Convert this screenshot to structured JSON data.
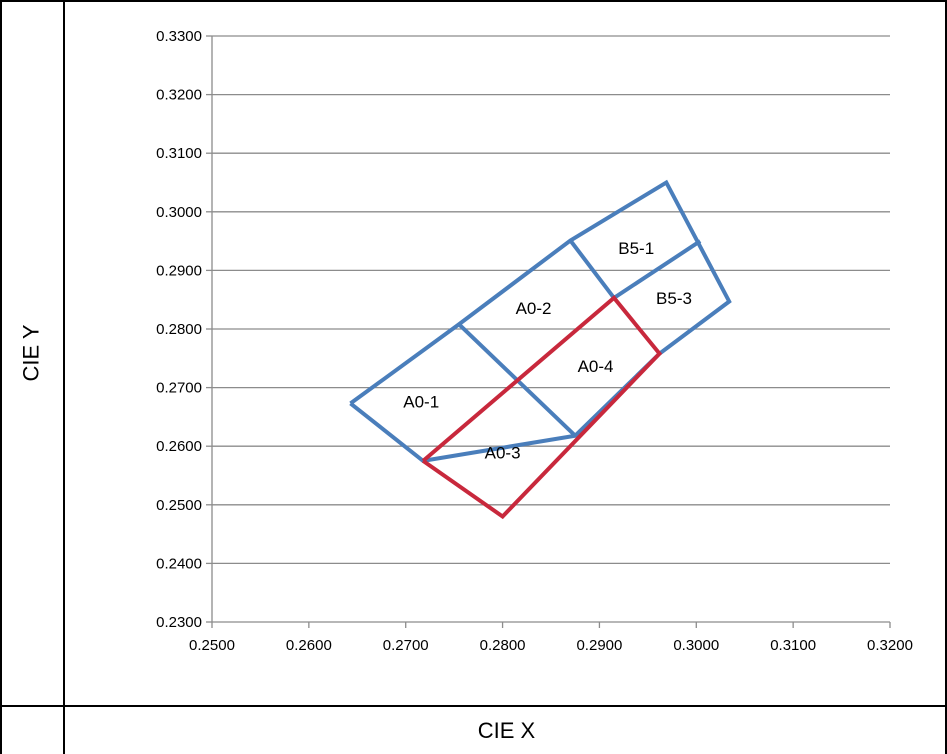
{
  "table": {
    "y_axis_label": "CIE Y",
    "x_axis_label": "CIE X"
  },
  "chart_data": {
    "type": "line",
    "title": "",
    "xlabel": "CIE X",
    "ylabel": "CIE Y",
    "xlim": [
      0.25,
      0.32
    ],
    "ylim": [
      0.23,
      0.33
    ],
    "x_ticks": [
      "0.2500",
      "0.2600",
      "0.2700",
      "0.2800",
      "0.2900",
      "0.3000",
      "0.3100",
      "0.3200"
    ],
    "y_ticks": [
      "0.2300",
      "0.2400",
      "0.2500",
      "0.2600",
      "0.2700",
      "0.2800",
      "0.2900",
      "0.3000",
      "0.3100",
      "0.3200",
      "0.3300"
    ],
    "grid": "horizontal",
    "colors": {
      "blue": "#4a7ebb",
      "red": "#c8283c",
      "grid": "#8c8c8c"
    },
    "series": [
      {
        "color": "blue",
        "points": [
          [
            0.2643,
            0.2673
          ],
          [
            0.2755,
            0.2808
          ],
          [
            0.287,
            0.2951
          ],
          [
            0.2969,
            0.305
          ],
          [
            0.3034,
            0.2847
          ],
          [
            0.2962,
            0.2758
          ],
          [
            0.2875,
            0.2618
          ],
          [
            0.2718,
            0.2575
          ],
          [
            0.2643,
            0.2673
          ]
        ]
      },
      {
        "color": "blue",
        "points": [
          [
            0.2755,
            0.2808
          ],
          [
            0.2875,
            0.2618
          ]
        ]
      },
      {
        "color": "blue",
        "points": [
          [
            0.287,
            0.2951
          ],
          [
            0.2915,
            0.2853
          ],
          [
            0.3004,
            0.295
          ]
        ]
      },
      {
        "color": "red",
        "points": [
          [
            0.2718,
            0.2575
          ],
          [
            0.2915,
            0.2853
          ],
          [
            0.2962,
            0.2758
          ],
          [
            0.28,
            0.248
          ],
          [
            0.2718,
            0.2575
          ]
        ]
      }
    ],
    "regions": [
      {
        "label": "A0-1",
        "x": 0.2716,
        "y": 0.2676
      },
      {
        "label": "A0-2",
        "x": 0.2832,
        "y": 0.2836
      },
      {
        "label": "A0-3",
        "x": 0.28,
        "y": 0.2589
      },
      {
        "label": "A0-4",
        "x": 0.2896,
        "y": 0.2737
      },
      {
        "label": "B5-1",
        "x": 0.2938,
        "y": 0.2938
      },
      {
        "label": "B5-3",
        "x": 0.2977,
        "y": 0.2853
      }
    ]
  }
}
